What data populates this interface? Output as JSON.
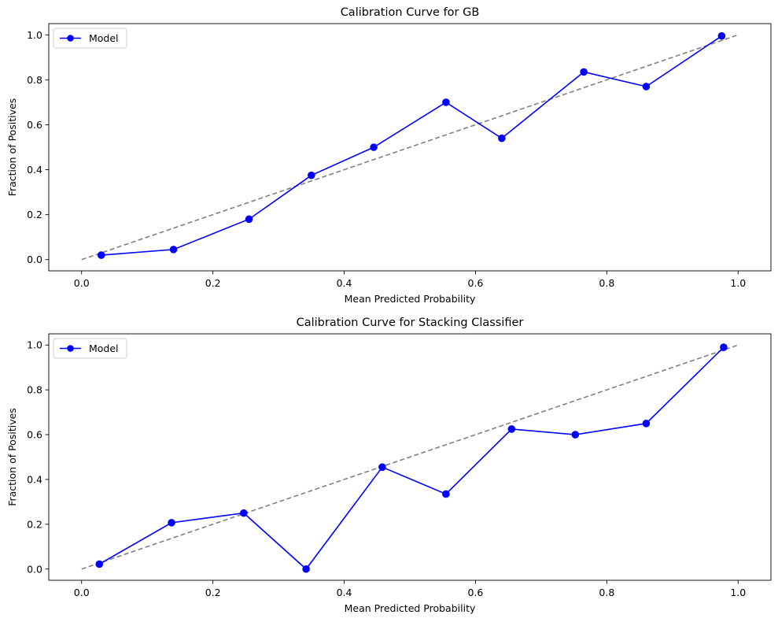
{
  "chart_data": [
    {
      "type": "line",
      "title": "Calibration Curve for GB",
      "xlabel": "Mean Predicted Probability",
      "ylabel": "Fraction of Positives",
      "xlim": [
        -0.05,
        1.05
      ],
      "ylim": [
        -0.05,
        1.05
      ],
      "xticks": [
        "0.0",
        "0.2",
        "0.4",
        "0.6",
        "0.8",
        "1.0"
      ],
      "yticks": [
        "0.0",
        "0.2",
        "0.4",
        "0.6",
        "0.8",
        "1.0"
      ],
      "grid": false,
      "legend": {
        "position": "top-left",
        "entries": [
          "Model"
        ]
      },
      "series": [
        {
          "name": "Model",
          "color": "#0000ff",
          "marker": "circle",
          "x": [
            0.03,
            0.14,
            0.255,
            0.35,
            0.445,
            0.555,
            0.64,
            0.765,
            0.86,
            0.975
          ],
          "y": [
            0.02,
            0.045,
            0.18,
            0.375,
            0.5,
            0.7,
            0.54,
            0.835,
            0.77,
            0.995
          ]
        },
        {
          "color": "#808080",
          "style": "dashed",
          "x": [
            0,
            1
          ],
          "y": [
            0,
            1
          ]
        }
      ]
    },
    {
      "type": "line",
      "title": "Calibration Curve for Stacking Classifier",
      "xlabel": "Mean Predicted Probability",
      "ylabel": "Fraction of Positives",
      "xlim": [
        -0.05,
        1.05
      ],
      "ylim": [
        -0.05,
        1.05
      ],
      "xticks": [
        "0.0",
        "0.2",
        "0.4",
        "0.6",
        "0.8",
        "1.0"
      ],
      "yticks": [
        "0.0",
        "0.2",
        "0.4",
        "0.6",
        "0.8",
        "1.0"
      ],
      "grid": false,
      "legend": {
        "position": "top-left",
        "entries": [
          "Model"
        ]
      },
      "series": [
        {
          "name": "Model",
          "color": "#0000ff",
          "marker": "circle",
          "x": [
            0.027,
            0.137,
            0.247,
            0.342,
            0.458,
            0.555,
            0.655,
            0.752,
            0.86,
            0.978
          ],
          "y": [
            0.022,
            0.207,
            0.25,
            0.0,
            0.455,
            0.335,
            0.625,
            0.6,
            0.65,
            0.99
          ]
        },
        {
          "color": "#808080",
          "style": "dashed",
          "x": [
            0,
            1
          ],
          "y": [
            0,
            1
          ]
        }
      ]
    }
  ]
}
